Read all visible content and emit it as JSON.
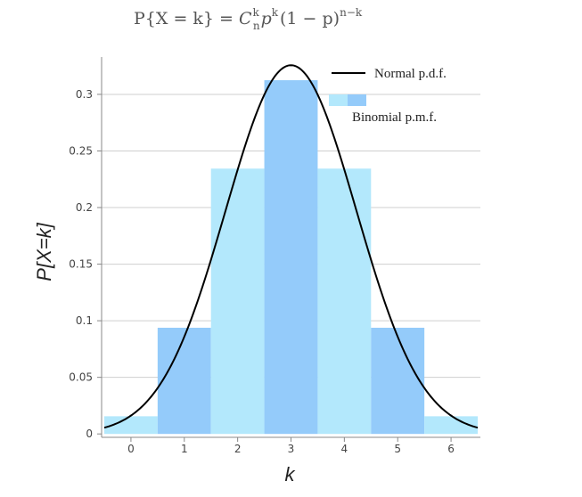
{
  "chart_data": {
    "type": "bar",
    "title": "P{X = k} = C_n^k p^k (1 − p)^(n−k)",
    "title_parts": {
      "lhs": "P{X = k} = ",
      "c": "C",
      "c_sup": "k",
      "c_sub": "n",
      "p1": "p",
      "p1_sup": "k",
      "mid": "(1 − p)",
      "mid_sup": "n−k"
    },
    "xlabel": "k",
    "ylabel": "P[X=k]",
    "xlim": [
      -0.55,
      6.55
    ],
    "ylim": [
      -0.003,
      0.333
    ],
    "grid": "horizontal",
    "legend_position": "top-right",
    "categories": [
      0,
      1,
      2,
      3,
      4,
      5,
      6
    ],
    "x_ticks": [
      "0",
      "1",
      "2",
      "3",
      "4",
      "5",
      "6"
    ],
    "y_ticks": [
      {
        "value": 0,
        "label": "0"
      },
      {
        "value": 0.05,
        "label": "0.05"
      },
      {
        "value": 0.1,
        "label": "0.1"
      },
      {
        "value": 0.15,
        "label": "0.15"
      },
      {
        "value": 0.2,
        "label": "0.2"
      },
      {
        "value": 0.25,
        "label": "0.25"
      },
      {
        "value": 0.3,
        "label": "0.3"
      }
    ],
    "series": [
      {
        "name": "Binomial p.m.f.",
        "type": "bar",
        "values": [
          0.0156,
          0.0938,
          0.2344,
          0.3125,
          0.2344,
          0.0938,
          0.0156
        ],
        "colors": [
          "#b3e8fc",
          "#94cbfa",
          "#b3e8fc",
          "#94cbfa",
          "#b3e8fc",
          "#94cbfa",
          "#b3e8fc"
        ]
      },
      {
        "name": "Normal p.d.f.",
        "type": "line",
        "mean": 3,
        "sd": 1.2247,
        "x_range": [
          -0.5,
          6.5
        ],
        "color": "#000000"
      }
    ]
  }
}
